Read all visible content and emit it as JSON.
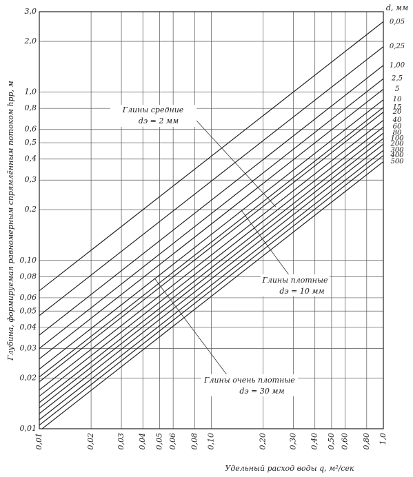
{
  "chart_data": {
    "type": "line",
    "y_label": "Глубина, формируемая равномерным спрямлённым потоком hрр, м",
    "x_label": "Удельный расход воды q, м²/сек",
    "legend_title": "d, мм",
    "log_x": true,
    "log_y": true,
    "grid": true,
    "xlim": [
      0.01,
      1.0
    ],
    "ylim": [
      0.01,
      3.0
    ],
    "x": [
      0.01,
      1.0
    ],
    "xticks": [
      {
        "value": 0.01,
        "label": "0,01"
      },
      {
        "value": 0.02,
        "label": "0,02"
      },
      {
        "value": 0.03,
        "label": "0,03"
      },
      {
        "value": 0.04,
        "label": "0,04"
      },
      {
        "value": 0.05,
        "label": "0,05"
      },
      {
        "value": 0.06,
        "label": "0,06"
      },
      {
        "value": 0.08,
        "label": "0,08"
      },
      {
        "value": 0.1,
        "label": "0,10"
      },
      {
        "value": 0.2,
        "label": "0,20"
      },
      {
        "value": 0.3,
        "label": "0,30"
      },
      {
        "value": 0.4,
        "label": "0,40"
      },
      {
        "value": 0.5,
        "label": "0,50"
      },
      {
        "value": 0.6,
        "label": "0,60"
      },
      {
        "value": 0.8,
        "label": "0,80"
      },
      {
        "value": 1.0,
        "label": "1,0"
      }
    ],
    "yticks": [
      {
        "value": 0.01,
        "label": "0,01"
      },
      {
        "value": 0.02,
        "label": "0,02"
      },
      {
        "value": 0.03,
        "label": "0,03"
      },
      {
        "value": 0.04,
        "label": "0,04"
      },
      {
        "value": 0.05,
        "label": "0,05"
      },
      {
        "value": 0.06,
        "label": "0,06"
      },
      {
        "value": 0.08,
        "label": "0,08"
      },
      {
        "value": 0.1,
        "label": "0,10"
      },
      {
        "value": 0.2,
        "label": "0,2"
      },
      {
        "value": 0.3,
        "label": "0,3"
      },
      {
        "value": 0.4,
        "label": "0,4"
      },
      {
        "value": 0.5,
        "label": "0,5"
      },
      {
        "value": 0.6,
        "label": "0,6"
      },
      {
        "value": 0.8,
        "label": "0,8"
      },
      {
        "value": 1.0,
        "label": "1,0"
      },
      {
        "value": 2.0,
        "label": "2,0"
      },
      {
        "value": 3.0,
        "label": "3,0"
      }
    ],
    "series": [
      {
        "name": "0,05",
        "color": "#222",
        "values": [
          0.066,
          2.62
        ]
      },
      {
        "name": "0,25",
        "color": "#222",
        "values": [
          0.047,
          1.86
        ]
      },
      {
        "name": "1,00",
        "color": "#222",
        "values": [
          0.036,
          1.44
        ]
      },
      {
        "name": "2,5",
        "color": "#222",
        "values": [
          0.03,
          1.2
        ]
      },
      {
        "name": "5",
        "color": "#222",
        "values": [
          0.026,
          1.04
        ]
      },
      {
        "name": "10",
        "color": "#222",
        "values": [
          0.0226,
          0.9
        ]
      },
      {
        "name": "15",
        "color": "#222",
        "values": [
          0.0203,
          0.81
        ]
      },
      {
        "name": "20",
        "color": "#222",
        "values": [
          0.019,
          0.76
        ]
      },
      {
        "name": "40",
        "color": "#222",
        "values": [
          0.017,
          0.68
        ]
      },
      {
        "name": "60",
        "color": "#222",
        "values": [
          0.0156,
          0.62
        ]
      },
      {
        "name": "80",
        "color": "#222",
        "values": [
          0.0143,
          0.57
        ]
      },
      {
        "name": "100",
        "color": "#222",
        "values": [
          0.0133,
          0.53
        ]
      },
      {
        "name": "200",
        "color": "#222",
        "values": [
          0.0123,
          0.49
        ]
      },
      {
        "name": "300",
        "color": "#222",
        "values": [
          0.0113,
          0.45
        ]
      },
      {
        "name": "400",
        "color": "#222",
        "values": [
          0.0105,
          0.42
        ]
      },
      {
        "name": "500",
        "color": "#222",
        "values": [
          0.0097,
          0.386
        ]
      }
    ],
    "annotations": [
      "Глины средние",
      "dэ = 2 мм",
      "Глины плотные",
      "dэ = 10 мм",
      "Глины очень плотные",
      "dэ = 30 мм"
    ]
  }
}
